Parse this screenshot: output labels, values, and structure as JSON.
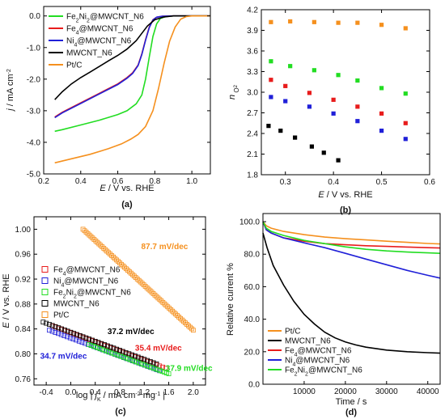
{
  "figure_captions": [
    "(a)",
    "(b)",
    "(c)",
    "(d)"
  ],
  "colors": {
    "green": "#22dd22",
    "red": "#e81c1c",
    "blue": "#2020d8",
    "black": "#000000",
    "orange": "#f5901e"
  },
  "chart_data": [
    {
      "panel": "a",
      "type": "line",
      "xlabel": "E / V vs. RHE",
      "ylabel": "j / mA cm⁻²",
      "xlim": [
        0.2,
        1.1
      ],
      "ylim": [
        -5.0,
        0.3
      ],
      "xticks": [
        "0.2",
        "0.4",
        "0.6",
        "0.8",
        "1.0"
      ],
      "yticks": [
        "-5.0",
        "-4.0",
        "-3.0",
        "-2.0",
        "-1.0",
        "0.0"
      ],
      "legend_position": "top-left",
      "series": [
        {
          "name": "Fe2Ni2@MWCNT_N6",
          "label_parts": [
            [
              "Fe",
              ""
            ],
            [
              "2",
              "sub"
            ],
            [
              "Ni",
              ""
            ],
            [
              "2",
              "sub"
            ],
            [
              "@MWCNT_N6",
              ""
            ]
          ],
          "color": "green",
          "x": [
            0.26,
            0.3,
            0.4,
            0.5,
            0.6,
            0.65,
            0.7,
            0.73,
            0.75,
            0.77,
            0.79,
            0.81,
            0.83,
            0.86,
            0.9,
            1.0,
            1.1
          ],
          "y": [
            -3.65,
            -3.6,
            -3.45,
            -3.3,
            -3.12,
            -3.0,
            -2.78,
            -2.5,
            -2.0,
            -1.3,
            -0.65,
            -0.25,
            -0.08,
            -0.02,
            0.0,
            0.0,
            0.0
          ]
        },
        {
          "name": "Fe4@MWCNT_N6",
          "label_parts": [
            [
              "Fe",
              ""
            ],
            [
              "4",
              "sub"
            ],
            [
              "@MWCNT_N6",
              ""
            ]
          ],
          "color": "red",
          "x": [
            0.26,
            0.3,
            0.4,
            0.5,
            0.6,
            0.65,
            0.68,
            0.71,
            0.73,
            0.75,
            0.77,
            0.79,
            0.81,
            0.84,
            0.9,
            1.0,
            1.1
          ],
          "y": [
            -3.2,
            -3.05,
            -2.75,
            -2.45,
            -2.15,
            -1.95,
            -1.8,
            -1.55,
            -1.2,
            -0.75,
            -0.35,
            -0.12,
            -0.04,
            -0.01,
            0.0,
            0.0,
            0.0
          ]
        },
        {
          "name": "Ni4@MWCNT_N6",
          "label_parts": [
            [
              "Ni",
              ""
            ],
            [
              "4",
              "sub"
            ],
            [
              "@MWCNT_N6",
              ""
            ]
          ],
          "color": "blue",
          "x": [
            0.26,
            0.3,
            0.4,
            0.5,
            0.6,
            0.65,
            0.68,
            0.71,
            0.73,
            0.75,
            0.77,
            0.79,
            0.81,
            0.84,
            0.9,
            1.0,
            1.1
          ],
          "y": [
            -3.22,
            -3.07,
            -2.77,
            -2.47,
            -2.17,
            -1.97,
            -1.82,
            -1.57,
            -1.22,
            -0.77,
            -0.37,
            -0.13,
            -0.04,
            -0.01,
            0.0,
            0.0,
            0.0
          ]
        },
        {
          "name": "MWCNT_N6",
          "label_parts": [
            [
              "MWCNT_N6",
              ""
            ]
          ],
          "color": "black",
          "x": [
            0.26,
            0.3,
            0.35,
            0.4,
            0.45,
            0.5,
            0.55,
            0.6,
            0.65,
            0.7,
            0.73,
            0.76,
            0.8,
            0.85,
            0.9,
            1.0,
            1.1
          ],
          "y": [
            -2.65,
            -2.4,
            -2.15,
            -1.95,
            -1.78,
            -1.6,
            -1.42,
            -1.25,
            -1.05,
            -0.78,
            -0.55,
            -0.32,
            -0.12,
            -0.03,
            0.0,
            0.0,
            0.0
          ]
        },
        {
          "name": "Pt/C",
          "label_parts": [
            [
              "Pt/C",
              ""
            ]
          ],
          "color": "orange",
          "x": [
            0.26,
            0.35,
            0.45,
            0.55,
            0.62,
            0.67,
            0.71,
            0.75,
            0.79,
            0.82,
            0.85,
            0.88,
            0.91,
            0.94,
            0.97,
            1.0,
            1.1
          ],
          "y": [
            -4.65,
            -4.52,
            -4.38,
            -4.2,
            -4.05,
            -3.9,
            -3.75,
            -3.5,
            -3.0,
            -2.3,
            -1.5,
            -0.8,
            -0.35,
            -0.1,
            -0.02,
            0.0,
            0.0
          ]
        }
      ]
    },
    {
      "panel": "b",
      "type": "scatter",
      "xlabel": "E / V vs. RHE",
      "ylabel": "n O₂",
      "xlim": [
        0.25,
        0.6
      ],
      "ylim": [
        1.8,
        4.2
      ],
      "xticks": [
        "0.3",
        "0.4",
        "0.5",
        "0.6"
      ],
      "yticks": [
        "1.8",
        "2.1",
        "2.4",
        "2.7",
        "3.0",
        "3.3",
        "3.6",
        "3.9",
        "4.2"
      ],
      "series": [
        {
          "name": "Pt/C",
          "color": "orange",
          "x": [
            0.27,
            0.31,
            0.36,
            0.41,
            0.45,
            0.5,
            0.55
          ],
          "y": [
            4.02,
            4.03,
            4.02,
            4.01,
            4.01,
            3.98,
            3.93
          ]
        },
        {
          "name": "Fe2Ni2@MWCNT_N6",
          "color": "green",
          "x": [
            0.27,
            0.31,
            0.36,
            0.41,
            0.45,
            0.5,
            0.55
          ],
          "y": [
            3.45,
            3.38,
            3.32,
            3.25,
            3.17,
            3.06,
            2.98
          ]
        },
        {
          "name": "Fe4@MWCNT_N6",
          "color": "red",
          "x": [
            0.27,
            0.3,
            0.35,
            0.4,
            0.45,
            0.5,
            0.55
          ],
          "y": [
            3.18,
            3.09,
            2.99,
            2.89,
            2.79,
            2.69,
            2.55
          ]
        },
        {
          "name": "Ni4@MWCNT_N6",
          "color": "blue",
          "x": [
            0.27,
            0.3,
            0.35,
            0.4,
            0.45,
            0.5,
            0.55
          ],
          "y": [
            2.93,
            2.87,
            2.79,
            2.69,
            2.58,
            2.44,
            2.32
          ]
        },
        {
          "name": "MWCNT_N6",
          "color": "black",
          "x": [
            0.265,
            0.29,
            0.32,
            0.355,
            0.38,
            0.41
          ],
          "y": [
            2.51,
            2.44,
            2.34,
            2.21,
            2.12,
            2.01
          ]
        }
      ]
    },
    {
      "panel": "c",
      "type": "scatter",
      "xlabel": "log | jK / mA cm⁻² mg⁻¹ |",
      "ylabel": "E / V vs. RHE",
      "xlim": [
        -0.6,
        2.2
      ],
      "ylim": [
        0.75,
        1.02
      ],
      "xticks": [
        "-0.4",
        "0.0",
        "0.4",
        "0.8",
        "1.2",
        "1.6",
        "2.0"
      ],
      "yticks": [
        "0.76",
        "0.80",
        "0.84",
        "0.88",
        "0.92",
        "0.96",
        "1.00"
      ],
      "legend_position": "middle-left",
      "series": [
        {
          "name": "Fe4@MWCNT_N6",
          "label_parts": [
            [
              "Fe",
              ""
            ],
            [
              "4",
              "sub"
            ],
            [
              "@MWCNT_N6",
              ""
            ]
          ],
          "color": "red",
          "x0": -0.3,
          "x1": 1.55,
          "y0": 0.845,
          "y1": 0.777
        },
        {
          "name": "Ni4@MWCNT_N6",
          "label_parts": [
            [
              "Ni",
              ""
            ],
            [
              "4",
              "sub"
            ],
            [
              "@MWCNT_N6",
              ""
            ]
          ],
          "color": "blue",
          "x0": -0.35,
          "x1": 1.45,
          "y0": 0.838,
          "y1": 0.773
        },
        {
          "name": "Fe2Ni2@MWCNT_N6",
          "label_parts": [
            [
              "Fe",
              ""
            ],
            [
              "2",
              "sub"
            ],
            [
              "Ni",
              ""
            ],
            [
              "2",
              "sub"
            ],
            [
              "@MWCNT_N6",
              ""
            ]
          ],
          "color": "green",
          "x0": 0.3,
          "x1": 1.6,
          "y0": 0.815,
          "y1": 0.768
        },
        {
          "name": "MWCNT_N6",
          "label_parts": [
            [
              "MWCNT_N6",
              ""
            ]
          ],
          "color": "black",
          "x0": -0.45,
          "x1": 1.4,
          "y0": 0.851,
          "y1": 0.784
        },
        {
          "name": "Pt/C",
          "label_parts": [
            [
              "Pt/C",
              ""
            ]
          ],
          "color": "orange",
          "x0": 0.2,
          "x1": 2.0,
          "y0": 1.0,
          "y1": 0.838
        }
      ],
      "annotations": [
        {
          "text": "87.7 mV/dec",
          "color": "orange",
          "x": 1.15,
          "y": 0.968
        },
        {
          "text": "37.2 mV/dec",
          "color": "black",
          "x": 0.6,
          "y": 0.832
        },
        {
          "text": "35.4 mV/dec",
          "color": "red",
          "x": 1.05,
          "y": 0.805
        },
        {
          "text": "34.7 mV/dec",
          "color": "blue",
          "x": -0.5,
          "y": 0.792
        },
        {
          "text": "37.9 mV/dec",
          "color": "green",
          "x": 1.55,
          "y": 0.773
        }
      ]
    },
    {
      "panel": "d",
      "type": "line",
      "xlabel": "Time / s",
      "ylabel": "Relative current %",
      "xlim": [
        0,
        43000
      ],
      "ylim": [
        0,
        105
      ],
      "xticks": [
        "10000",
        "20000",
        "30000",
        "40000"
      ],
      "yticks": [
        "0.0",
        "20.0",
        "40.0",
        "60.0",
        "80.0",
        "100.0"
      ],
      "legend_position": "bottom-left",
      "series": [
        {
          "name": "Pt/C",
          "label_parts": [
            [
              "Pt/C",
              ""
            ]
          ],
          "color": "orange",
          "x": [
            0,
            800,
            2000,
            5000,
            10000,
            15000,
            20000,
            25000,
            30000,
            35000,
            40000,
            43000
          ],
          "y": [
            100,
            97.5,
            96,
            94,
            92,
            90.5,
            89.5,
            88.8,
            88,
            87.3,
            86.6,
            86.3
          ]
        },
        {
          "name": "MWCNT_N6",
          "label_parts": [
            [
              "MWCNT_N6",
              ""
            ]
          ],
          "color": "black",
          "x": [
            0,
            1000,
            2500,
            5000,
            7500,
            10000,
            12500,
            15000,
            17500,
            20000,
            22500,
            25000,
            30000,
            35000,
            40000,
            43000
          ],
          "y": [
            93,
            84,
            73,
            61,
            51,
            43,
            37,
            32,
            28.5,
            26,
            24.2,
            22.8,
            21,
            20,
            19.4,
            19.1
          ]
        },
        {
          "name": "Fe4@MWCNT_N6",
          "label_parts": [
            [
              "Fe",
              ""
            ],
            [
              "4",
              "sub"
            ],
            [
              "@MWCNT_N6",
              ""
            ]
          ],
          "color": "red",
          "x": [
            0,
            800,
            2000,
            5000,
            10000,
            15000,
            20000,
            25000,
            30000,
            35000,
            40000,
            43000
          ],
          "y": [
            100,
            95,
            93,
            90,
            88,
            86.5,
            85.8,
            85.2,
            84.8,
            84.4,
            84,
            83.8
          ]
        },
        {
          "name": "Ni4@MWCNT_N6",
          "label_parts": [
            [
              "Ni",
              ""
            ],
            [
              "4",
              "sub"
            ],
            [
              "@MWCNT_N6",
              ""
            ]
          ],
          "color": "blue",
          "x": [
            0,
            800,
            2000,
            5000,
            10000,
            15000,
            20000,
            25000,
            30000,
            35000,
            40000,
            43000
          ],
          "y": [
            100,
            95,
            93,
            90,
            87,
            84,
            80.5,
            77,
            73.5,
            70,
            67,
            65.3
          ]
        },
        {
          "name": "Fe2Ni2@MWCNT_N6",
          "label_parts": [
            [
              "Fe",
              ""
            ],
            [
              "2",
              "sub"
            ],
            [
              "Ni",
              ""
            ],
            [
              "2",
              "sub"
            ],
            [
              "@MWCNT_N6",
              ""
            ]
          ],
          "color": "green",
          "x": [
            0,
            800,
            2000,
            5000,
            10000,
            15000,
            20000,
            25000,
            30000,
            35000,
            40000,
            43000
          ],
          "y": [
            100,
            96,
            94,
            91.5,
            88.5,
            86.5,
            84.5,
            83,
            82,
            81.3,
            80.8,
            80.5
          ]
        }
      ]
    }
  ]
}
